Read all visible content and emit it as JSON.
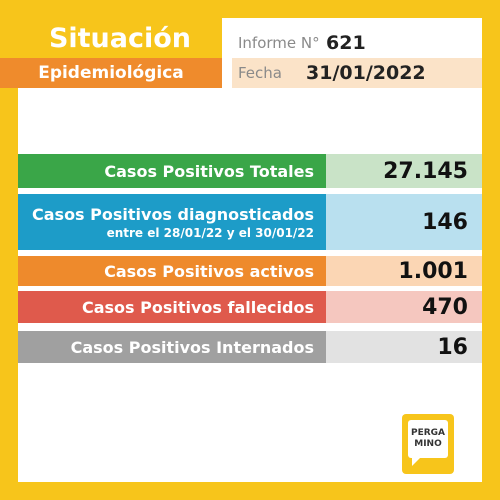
{
  "header": {
    "title": "Situación",
    "subtitle": "Epidemiológica",
    "report_label": "Informe N°",
    "report_number": "621",
    "date_label": "Fecha",
    "date_value": "31/01/2022"
  },
  "stats": {
    "total_label": "Casos Positivos Totales",
    "total_value": "27.145",
    "diagnosed_label": "Casos Positivos diagnosticados",
    "diagnosed_sublabel": "entre el 28/01/22 y el 30/01/22",
    "diagnosed_value": "146",
    "active_label": "Casos Positivos activos",
    "active_value": "1.001",
    "deceased_label": "Casos Positivos fallecidos",
    "deceased_value": "470",
    "hospitalized_label": "Casos Positivos Internados",
    "hospitalized_value": "16"
  },
  "logo": {
    "line1": "PERGA",
    "line2": "MINO"
  },
  "colors": {
    "background": "#f7c51b",
    "green": "#3aa648",
    "blue": "#1d9cc8",
    "orange": "#ee8a2c",
    "red": "#df5a4c",
    "gray": "#a0a0a0"
  }
}
